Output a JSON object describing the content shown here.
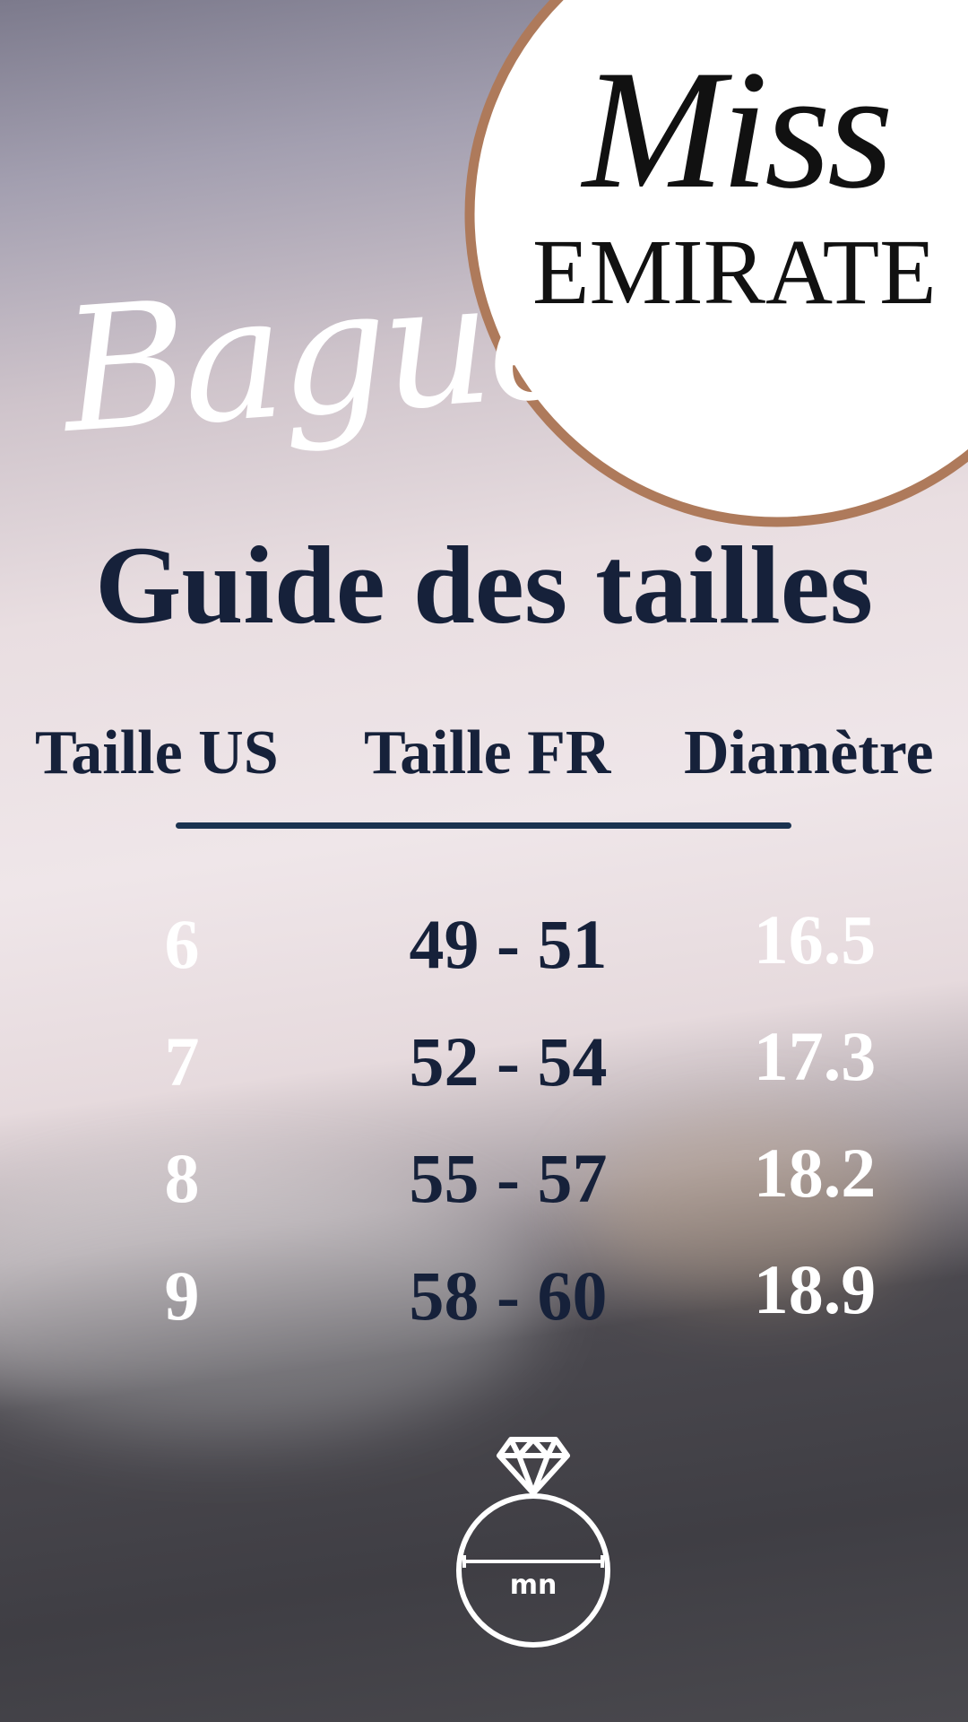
{
  "logo": {
    "line1": "Miss",
    "line2": "EMIRATE",
    "border_color": "#ae7a5b"
  },
  "subtitle": "Bague",
  "title": "Guide des tailles",
  "table": {
    "headers": [
      "Taille US",
      "Taille FR",
      "Diamètre"
    ],
    "rows": [
      {
        "us": "6",
        "fr": "49 - 51",
        "diam": "16.5"
      },
      {
        "us": "7",
        "fr": "52 - 54",
        "diam": "17.3"
      },
      {
        "us": "8",
        "fr": "55 - 57",
        "diam": "18.2"
      },
      {
        "us": "9",
        "fr": "58 - 60",
        "diam": "18.9"
      }
    ]
  },
  "ring_icon": {
    "name": "diamond-ring-icon",
    "label": "mn"
  },
  "colors": {
    "navy": "#16213a",
    "rule": "#1b3350",
    "white": "#ffffff"
  }
}
